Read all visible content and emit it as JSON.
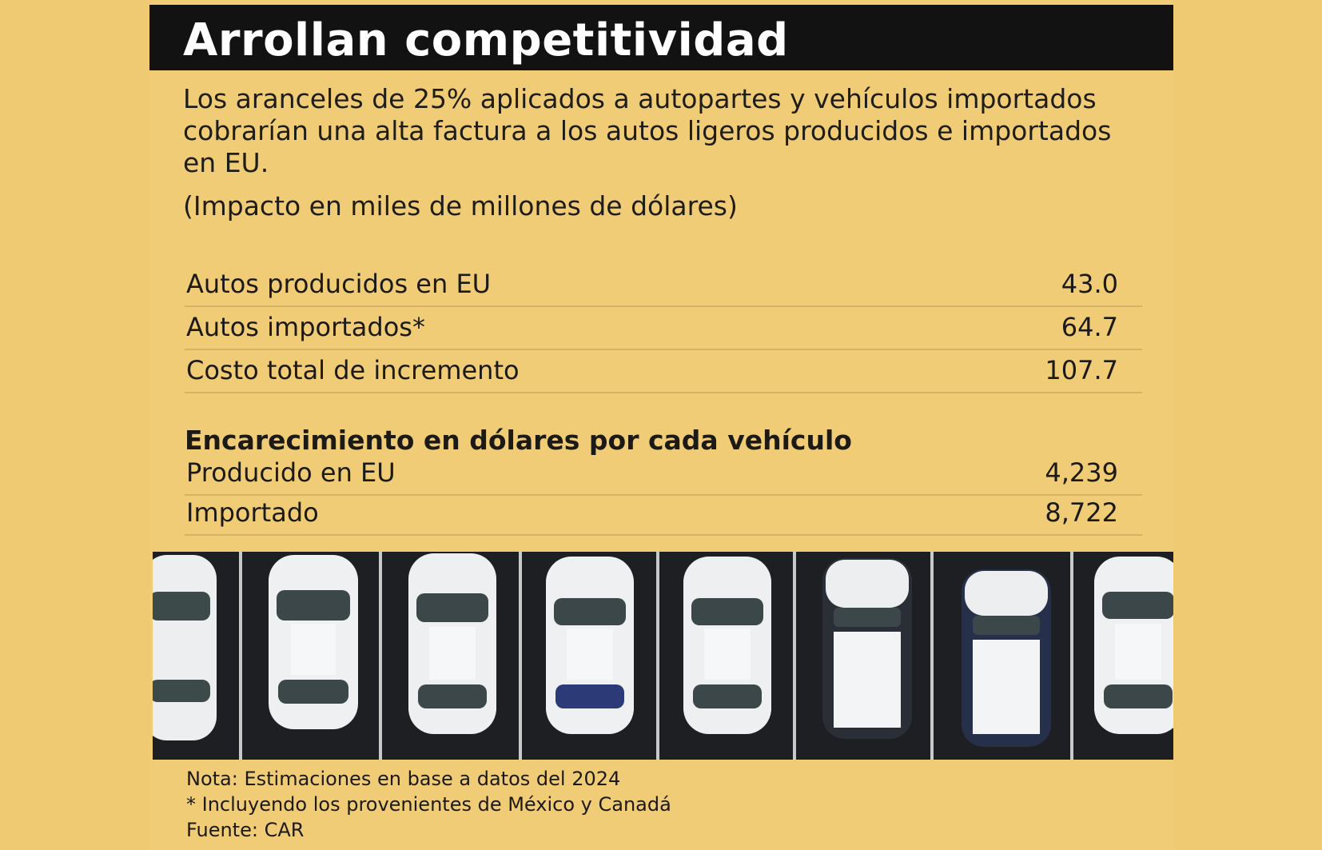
{
  "title": "Arrollan competitividad",
  "subtitle": "Los aranceles de 25% aplicados a autopartes y vehículos importados cobrarían una alta factura a los autos ligeros producidos e importados en EU.",
  "unit_note": "(Impacto en miles de millones de dólares)",
  "impact_rows": [
    {
      "label": "Autos producidos en EU",
      "value": "43.0"
    },
    {
      "label": "Autos importados*",
      "value": "64.7"
    },
    {
      "label": "Costo total de incremento",
      "value": "107.7"
    }
  ],
  "per_vehicle_title": "Encarecimiento en dólares por cada vehículo",
  "per_vehicle_rows": [
    {
      "label": "Producido en EU",
      "value": "4,239"
    },
    {
      "label": "Importado",
      "value": "8,722"
    }
  ],
  "footer": {
    "note": "Nota: Estimaciones en base a datos del 2024",
    "asterisk": "* Incluyendo los provenientes de México y Canadá",
    "source": "Fuente: CAR"
  },
  "colors": {
    "background": "#efca72",
    "title_bar": "#121212",
    "title_text": "#ffffff",
    "asphalt": "#1d1f22"
  }
}
